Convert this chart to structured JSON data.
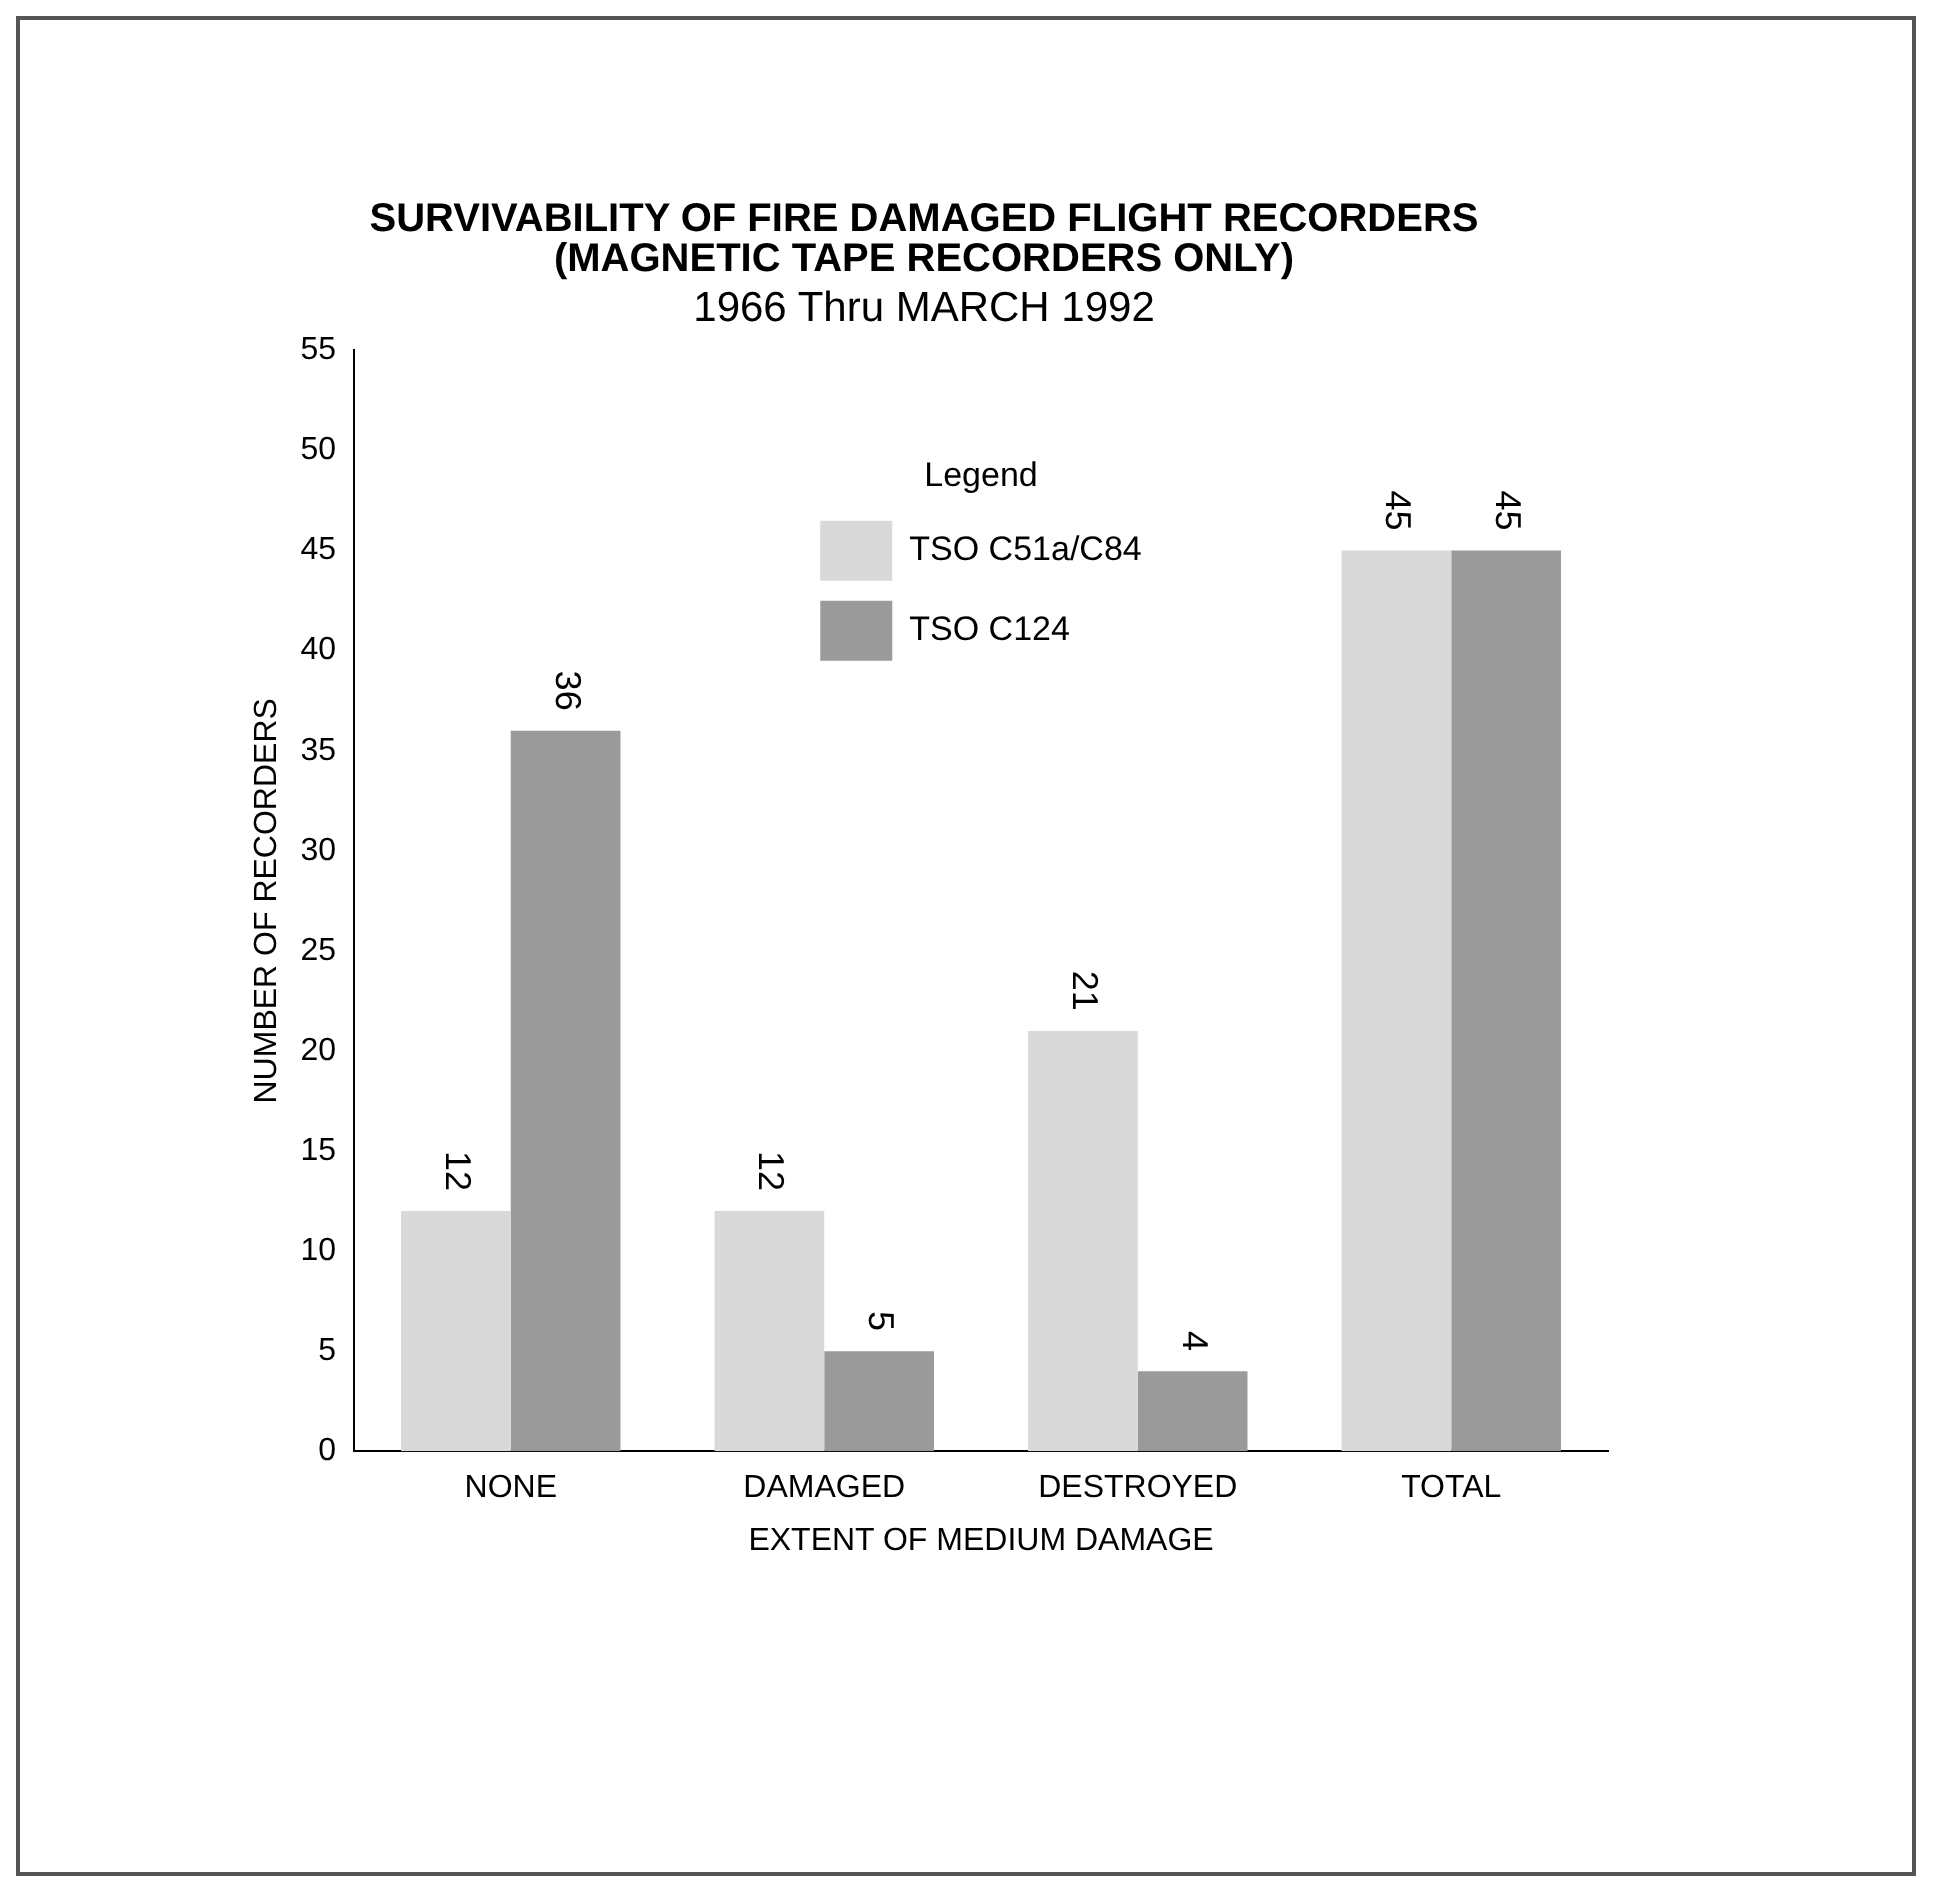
{
  "chart_data": {
    "type": "bar",
    "title": "SURVIVABILITY OF FIRE DAMAGED FLIGHT RECORDERS\n(MAGNETIC TAPE RECORDERS ONLY)",
    "subtitle": "1966 Thru MARCH 1992",
    "xlabel": "EXTENT OF MEDIUM DAMAGE",
    "ylabel": "NUMBER OF RECORDERS",
    "legend_title": "Legend",
    "categories": [
      "NONE",
      "DAMAGED",
      "DESTROYED",
      "TOTAL"
    ],
    "series": [
      {
        "name": "TSO C51a/C84",
        "color": "#d9d9d9",
        "values": [
          12,
          12,
          21,
          45
        ]
      },
      {
        "name": "TSO C124",
        "color": "#9a9a9a",
        "values": [
          36,
          5,
          4,
          45
        ]
      }
    ],
    "ylim": [
      0,
      55
    ],
    "yticks": [
      0,
      5,
      10,
      15,
      20,
      25,
      30,
      35,
      40,
      45,
      50,
      55
    ],
    "grid": false,
    "legend": "top",
    "data_labels": true
  }
}
